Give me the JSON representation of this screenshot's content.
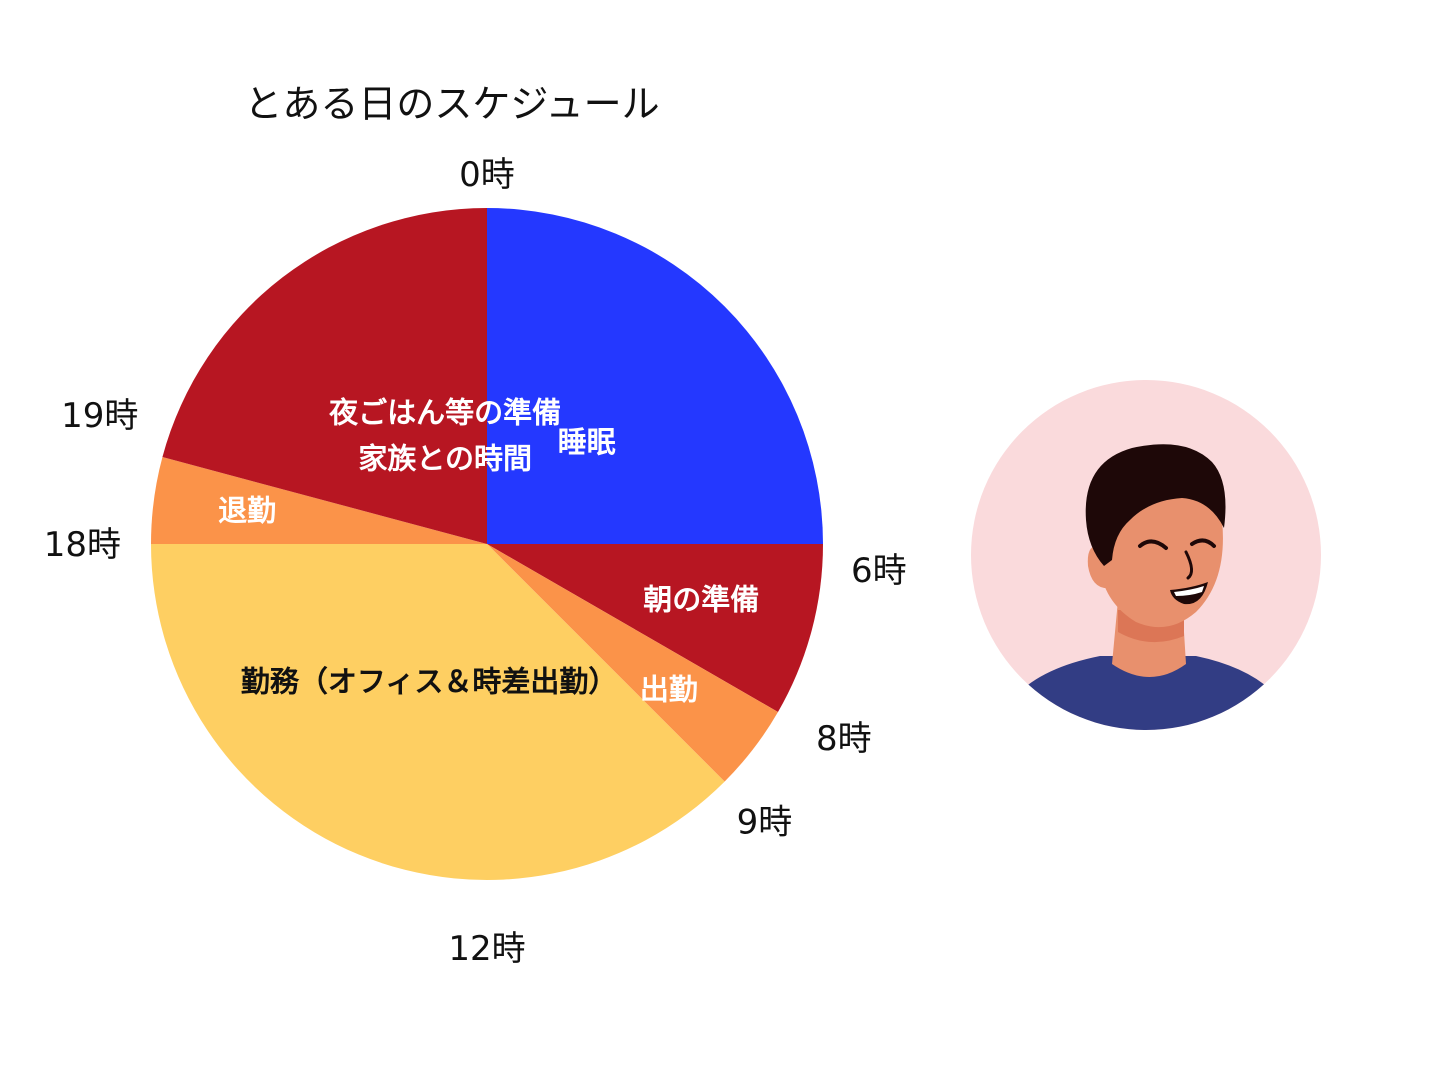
{
  "colors": {
    "sleep": "#2438FF",
    "prep": "#B71622",
    "commute": "#FB9349",
    "work": "#FECF62",
    "avatar_bg": "#FADADC",
    "shirt": "#323D84",
    "skin": "#E8906D",
    "skin_shadow": "#DC7656",
    "hair": "#1E0808"
  },
  "chart_data": {
    "type": "pie",
    "title": "とある日のスケジュール",
    "unit": "hours",
    "start_hour": 0,
    "slices": [
      {
        "start": 0,
        "end": 6,
        "label_lines": [
          "睡眠"
        ],
        "color_key": "sleep",
        "text_color": "#FFFFFF"
      },
      {
        "start": 6,
        "end": 8,
        "label_lines": [
          "朝の準備"
        ],
        "color_key": "prep",
        "text_color": "#FFFFFF"
      },
      {
        "start": 8,
        "end": 9,
        "label_lines": [
          "出勤"
        ],
        "color_key": "commute",
        "text_color": "#FFFFFF"
      },
      {
        "start": 9,
        "end": 18,
        "label_lines": [
          "勤務（オフィス＆時差出勤）"
        ],
        "color_key": "work",
        "text_color": "#111111"
      },
      {
        "start": 18,
        "end": 19,
        "label_lines": [
          "退勤"
        ],
        "color_key": "commute",
        "text_color": "#FFFFFF"
      },
      {
        "start": 19,
        "end": 24,
        "label_lines": [
          "夜ごはん等の準備",
          "家族との時間"
        ],
        "color_key": "prep",
        "text_color": "#FFFFFF"
      }
    ],
    "hour_labels": [
      {
        "hour": 0,
        "text": "0時"
      },
      {
        "hour": 6,
        "text": "6時"
      },
      {
        "hour": 8,
        "text": "8時"
      },
      {
        "hour": 9,
        "text": "9時"
      },
      {
        "hour": 12,
        "text": "12時"
      },
      {
        "hour": 18,
        "text": "18時"
      },
      {
        "hour": 19,
        "text": "19時"
      }
    ]
  },
  "avatar": {
    "icon": "smiling-person-icon"
  }
}
